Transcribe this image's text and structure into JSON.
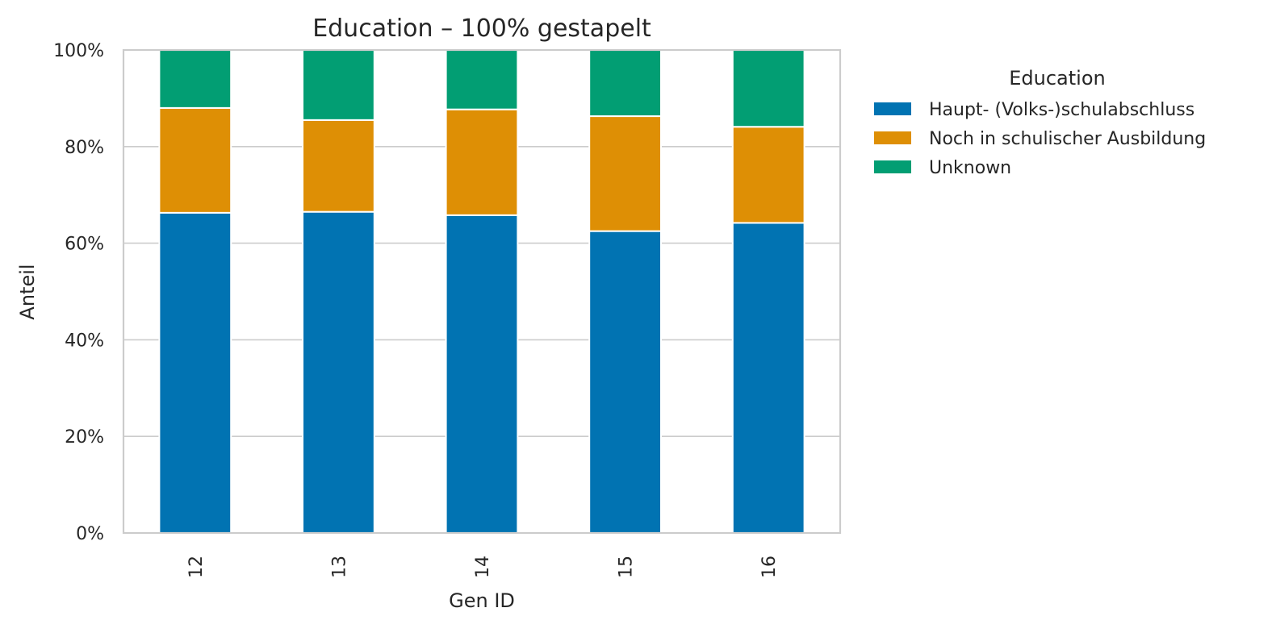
{
  "chart_data": {
    "type": "bar",
    "stacked": true,
    "normalized": true,
    "title": "Education – 100% gestapelt",
    "xlabel": "Gen ID",
    "ylabel": "Anteil",
    "categories": [
      "12",
      "13",
      "14",
      "15",
      "16"
    ],
    "ylim": [
      0,
      1
    ],
    "yticks": [
      0,
      0.2,
      0.4,
      0.6,
      0.8,
      1.0
    ],
    "ytick_labels": [
      "0%",
      "20%",
      "40%",
      "60%",
      "80%",
      "100%"
    ],
    "grid": true,
    "legend": {
      "title": "Education",
      "placement": "outside-top-right"
    },
    "series": [
      {
        "name": "Haupt- (Volks-)schulabschluss",
        "color": "#0173b2",
        "values": [
          0.663,
          0.665,
          0.658,
          0.625,
          0.642
        ]
      },
      {
        "name": "Noch in schulischer Ausbildung",
        "color": "#de8f05",
        "values": [
          0.217,
          0.19,
          0.219,
          0.238,
          0.199
        ]
      },
      {
        "name": "Unknown",
        "color": "#029e73",
        "values": [
          0.12,
          0.145,
          0.123,
          0.137,
          0.159
        ]
      }
    ]
  }
}
